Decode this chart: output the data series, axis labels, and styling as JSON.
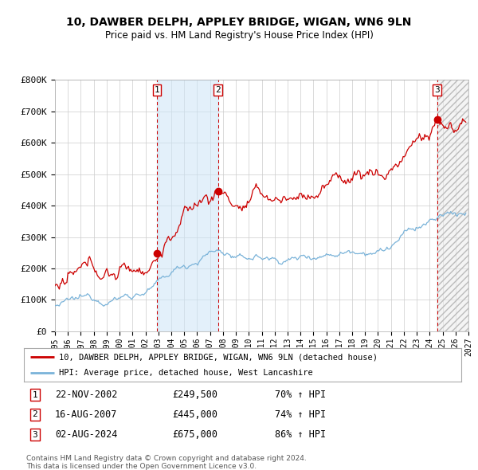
{
  "title": "10, DAWBER DELPH, APPLEY BRIDGE, WIGAN, WN6 9LN",
  "subtitle": "Price paid vs. HM Land Registry's House Price Index (HPI)",
  "ylim": [
    0,
    800000
  ],
  "yticks": [
    0,
    100000,
    200000,
    300000,
    400000,
    500000,
    600000,
    700000,
    800000
  ],
  "ytick_labels": [
    "£0",
    "£100K",
    "£200K",
    "£300K",
    "£400K",
    "£500K",
    "£600K",
    "£700K",
    "£800K"
  ],
  "x_start_year": 1995.0,
  "x_end_year": 2027.0,
  "xtick_years": [
    1995,
    1996,
    1997,
    1998,
    1999,
    2000,
    2001,
    2002,
    2003,
    2004,
    2005,
    2006,
    2007,
    2008,
    2009,
    2010,
    2011,
    2012,
    2013,
    2014,
    2015,
    2016,
    2017,
    2018,
    2019,
    2020,
    2021,
    2022,
    2023,
    2024,
    2025,
    2026,
    2027
  ],
  "sale1_date": 2002.896,
  "sale1_price": 249500,
  "sale2_date": 2007.622,
  "sale2_price": 445000,
  "sale3_date": 2024.586,
  "sale3_price": 675000,
  "shading_start": 2002.896,
  "shading_end": 2007.622,
  "hatch_start": 2024.586,
  "hatch_end": 2027.0,
  "line_color_hpi": "#7ab3d9",
  "line_color_price": "#cc0000",
  "bg_color": "#ffffff",
  "grid_color": "#cccccc",
  "legend_label1": "10, DAWBER DELPH, APPLEY BRIDGE, WIGAN, WN6 9LN (detached house)",
  "legend_label2": "HPI: Average price, detached house, West Lancashire",
  "table_rows": [
    [
      "1",
      "22-NOV-2002",
      "£249,500",
      "70% ↑ HPI"
    ],
    [
      "2",
      "16-AUG-2007",
      "£445,000",
      "74% ↑ HPI"
    ],
    [
      "3",
      "02-AUG-2024",
      "£675,000",
      "86% ↑ HPI"
    ]
  ],
  "footnote1": "Contains HM Land Registry data © Crown copyright and database right 2024.",
  "footnote2": "This data is licensed under the Open Government Licence v3.0."
}
